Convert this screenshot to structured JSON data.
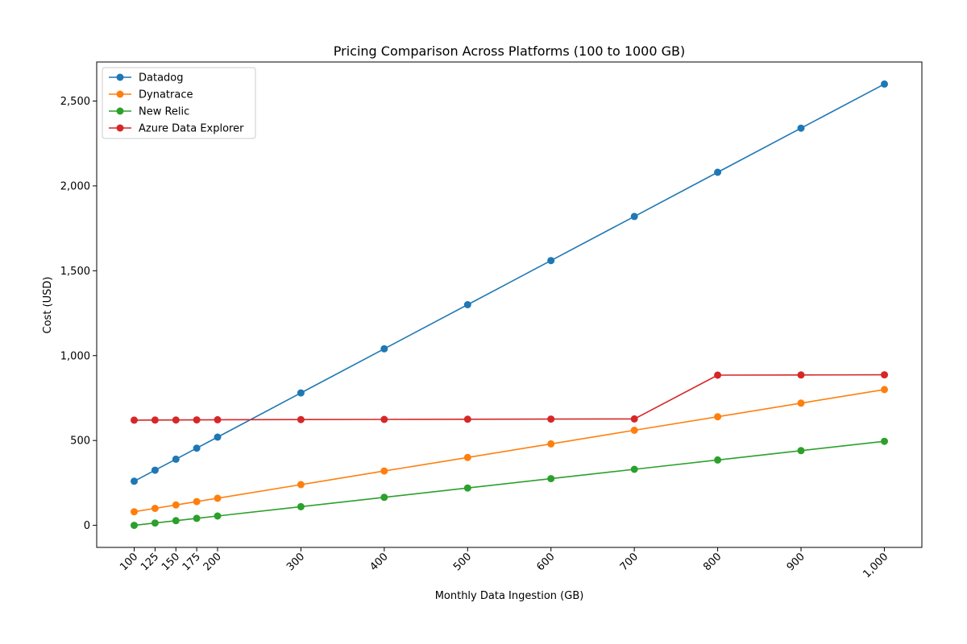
{
  "chart_data": {
    "type": "line",
    "title": "Pricing Comparison Across Platforms (100 to 1000 GB)",
    "xlabel": "Monthly Data Ingestion (GB)",
    "ylabel": "Cost (USD)",
    "x": [
      100,
      125,
      150,
      175,
      200,
      300,
      400,
      500,
      600,
      700,
      800,
      900,
      1000
    ],
    "xticks": [
      100,
      125,
      150,
      175,
      200,
      300,
      400,
      500,
      600,
      700,
      800,
      900,
      1000
    ],
    "xtick_labels": [
      "100",
      "125",
      "150",
      "175",
      "200",
      "300",
      "400",
      "500",
      "600",
      "700",
      "800",
      "900",
      "1,000"
    ],
    "yticks": [
      0,
      500,
      1000,
      1500,
      2000,
      2500
    ],
    "ytick_labels": [
      "0",
      "500",
      "1,000",
      "1,500",
      "2,000",
      "2,500"
    ],
    "xlim": [
      55,
      1045
    ],
    "ylim": [
      -130,
      2730
    ],
    "grid": false,
    "legend_position": "top-left",
    "series": [
      {
        "name": "Datadog",
        "color": "#1f77b4",
        "values": [
          260,
          325,
          390,
          455,
          520,
          780,
          1040,
          1300,
          1560,
          1820,
          2080,
          2340,
          2600
        ]
      },
      {
        "name": "Dynatrace",
        "color": "#ff7f0e",
        "values": [
          80,
          100,
          120,
          140,
          160,
          240,
          320,
          400,
          480,
          560,
          640,
          720,
          800
        ]
      },
      {
        "name": "New Relic",
        "color": "#2ca02c",
        "values": [
          0,
          13.75,
          27.5,
          41.25,
          55,
          110,
          165,
          220,
          275,
          330,
          385,
          440,
          495
        ]
      },
      {
        "name": "Azure Data Explorer",
        "color": "#d62728",
        "values": [
          620,
          620.5,
          621,
          621.5,
          622,
          623,
          624,
          625,
          626,
          627,
          885,
          886,
          887
        ]
      }
    ]
  }
}
